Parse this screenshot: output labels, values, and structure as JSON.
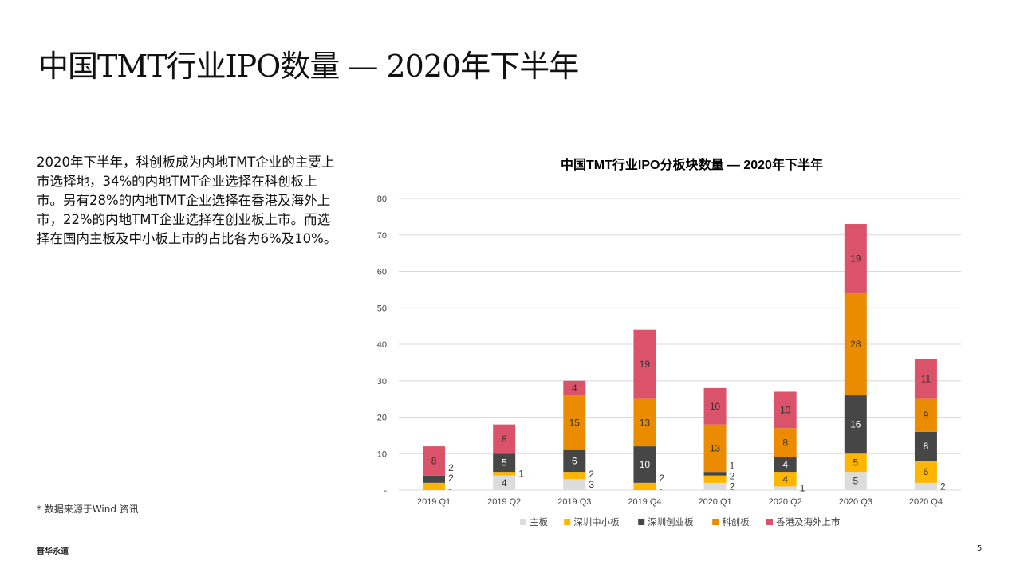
{
  "title": "中国TMT行业IPO数量 — 2020年下半年",
  "body_text": "2020年下半年，科创板成为内地TMT企业的主要上市选择地，34%的内地TMT企业选择在科创板上市。另有28%的内地TMT企业选择在香港及海外上市，22%的内地TMT企业选择在创业板上市。而选择在国内主板及中小板上市的占比各为6%及10%。",
  "note": "* 数据来源于Wind 资讯",
  "brand": "普华永道",
  "page_number": "5",
  "chart_data": {
    "type": "bar",
    "stacked": true,
    "title": "中国TMT行业IPO分板块数量 — 2020年下半年",
    "categories": [
      "2019 Q1",
      "2019 Q2",
      "2019 Q3",
      "2019 Q4",
      "2020 Q1",
      "2020 Q2",
      "2020 Q3",
      "2020 Q4"
    ],
    "ylim": [
      0,
      80
    ],
    "yticks": [
      0,
      10,
      20,
      30,
      40,
      50,
      60,
      70,
      80
    ],
    "grid": true,
    "legend": "bottom",
    "zero_label": "-",
    "series": [
      {
        "name": "主板",
        "color": "#dcdcdc",
        "values": [
          0,
          4,
          3,
          0,
          2,
          1,
          5,
          2
        ]
      },
      {
        "name": "深圳中小板",
        "color": "#ffb600",
        "values": [
          2,
          1,
          2,
          2,
          2,
          4,
          5,
          6
        ]
      },
      {
        "name": "深圳创业板",
        "color": "#464646",
        "values": [
          2,
          5,
          6,
          10,
          1,
          4,
          16,
          8
        ]
      },
      {
        "name": "科创板",
        "color": "#eb8c00",
        "values": [
          0,
          0,
          15,
          13,
          13,
          8,
          28,
          9
        ]
      },
      {
        "name": "香港及海外上市",
        "color": "#db536a",
        "values": [
          8,
          8,
          4,
          19,
          10,
          10,
          19,
          11
        ]
      }
    ]
  }
}
